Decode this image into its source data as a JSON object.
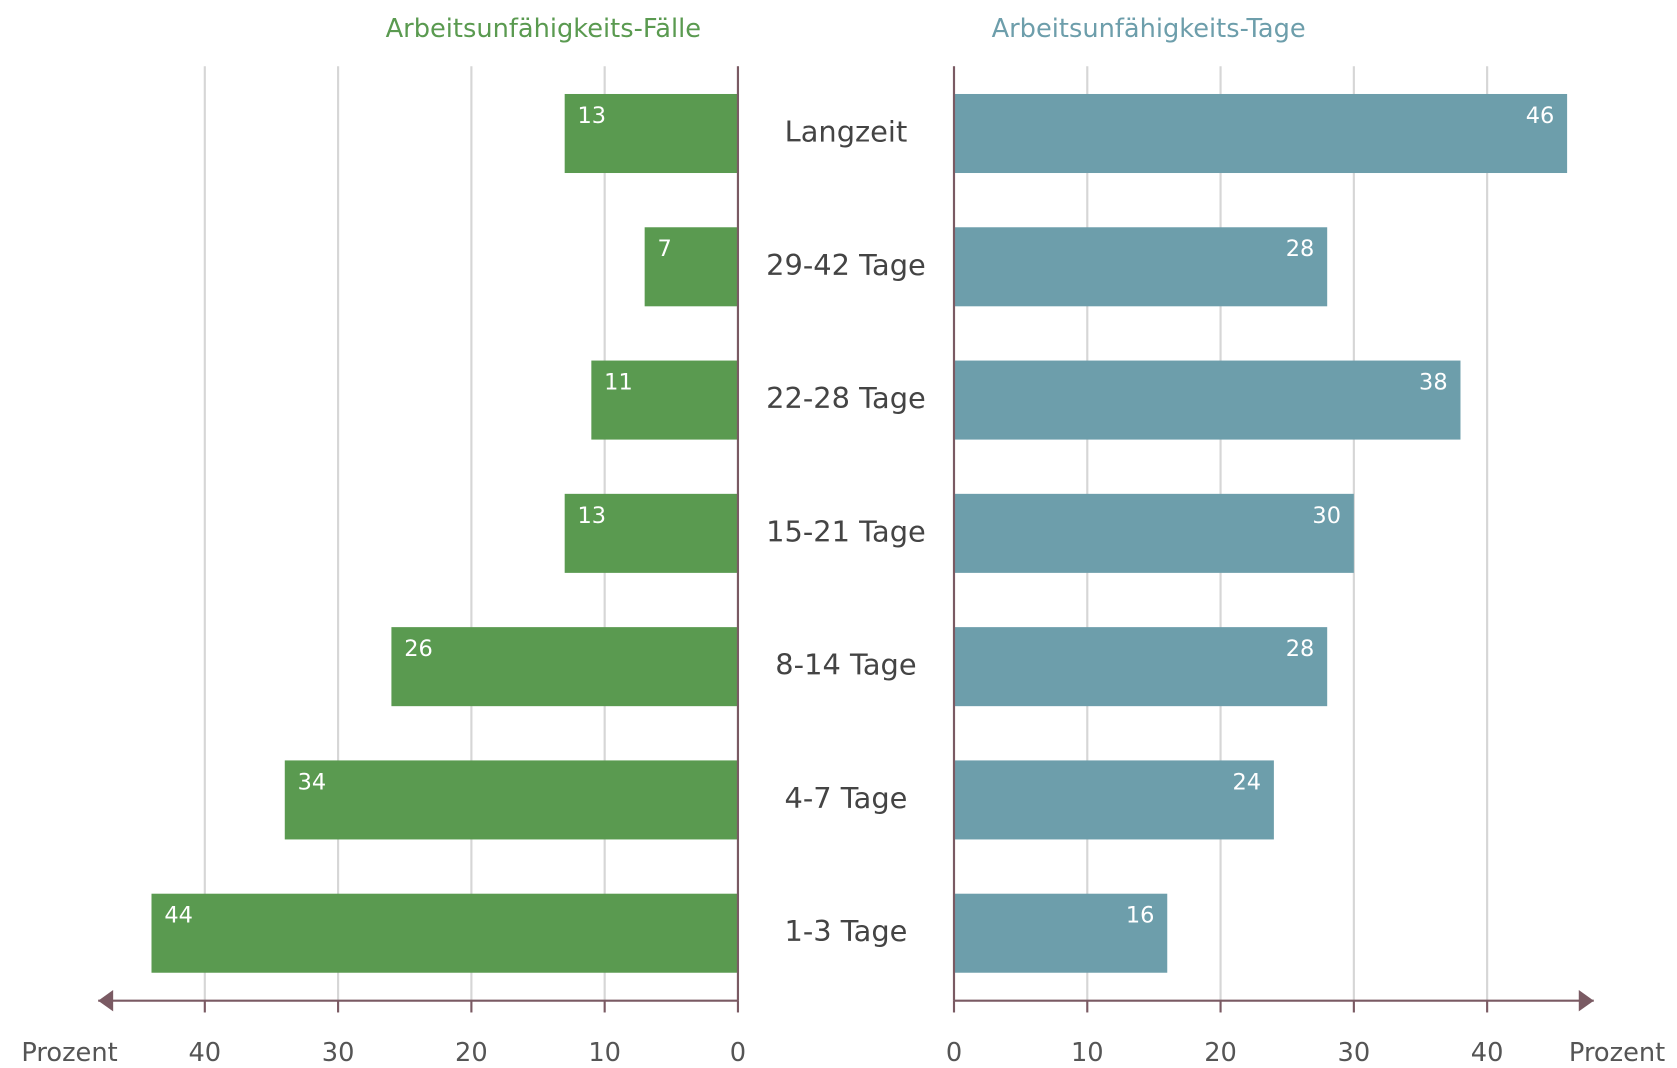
{
  "chart_data": {
    "type": "bar",
    "categories": [
      "Langzeit",
      "29-42 Tage",
      "22-28 Tage",
      "15-21 Tage",
      "8-14 Tage",
      "4-7 Tage",
      "1-3 Tage"
    ],
    "series": [
      {
        "name": "Arbeitsunfähigkeits-Fälle",
        "color": "#5a9a50",
        "values": [
          13,
          7,
          11,
          13,
          26,
          34,
          44
        ]
      },
      {
        "name": "Arbeitsunfähigkeits-Tage",
        "color": "#6d9eab",
        "values": [
          46,
          28,
          38,
          30,
          28,
          24,
          16
        ]
      }
    ],
    "x_label": "Prozent",
    "xlim": [
      0,
      48
    ],
    "xticks": [
      0,
      10,
      20,
      30,
      40
    ],
    "grid": true
  }
}
